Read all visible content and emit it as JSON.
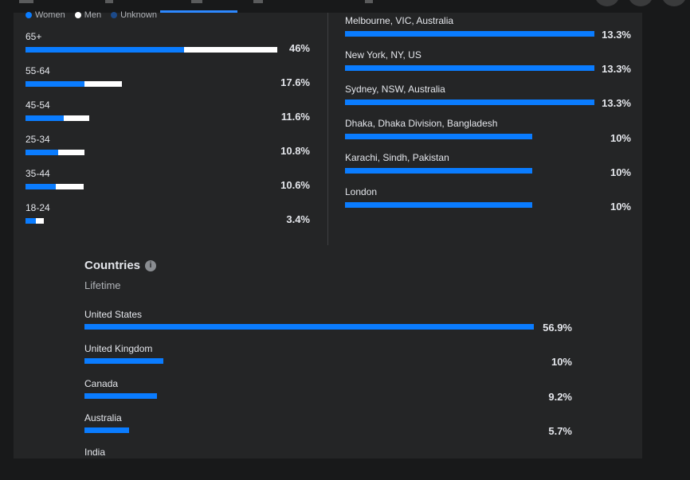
{
  "legend": [
    {
      "label": "Women",
      "color": "#0a7cff"
    },
    {
      "label": "Men",
      "color": "#ffffff"
    },
    {
      "label": "Unknown",
      "color": "#1c4a8a"
    }
  ],
  "age_groups": [
    {
      "label": "65+",
      "women_pct": 28.9,
      "men_pct": 17.1,
      "pct_label": "46%"
    },
    {
      "label": "55-64",
      "women_pct": 10.8,
      "men_pct": 6.8,
      "pct_label": "17.6%"
    },
    {
      "label": "45-54",
      "women_pct": 7.0,
      "men_pct": 4.6,
      "pct_label": "11.6%"
    },
    {
      "label": "25-34",
      "women_pct": 6.0,
      "men_pct": 4.8,
      "pct_label": "10.8%"
    },
    {
      "label": "35-44",
      "women_pct": 5.6,
      "men_pct": 5.0,
      "pct_label": "10.6%"
    },
    {
      "label": "18-24",
      "women_pct": 1.9,
      "men_pct": 1.5,
      "pct_label": "3.4%"
    }
  ],
  "age_scale_max": 46,
  "cities": [
    {
      "label": "Melbourne, VIC, Australia",
      "value": 13.3,
      "pct_label": "13.3%"
    },
    {
      "label": "New York, NY, US",
      "value": 13.3,
      "pct_label": "13.3%"
    },
    {
      "label": "Sydney, NSW, Australia",
      "value": 13.3,
      "pct_label": "13.3%"
    },
    {
      "label": "Dhaka, Dhaka Division, Bangladesh",
      "value": 10,
      "pct_label": "10%"
    },
    {
      "label": "Karachi, Sindh, Pakistan",
      "value": 10,
      "pct_label": "10%"
    },
    {
      "label": "London",
      "value": 10,
      "pct_label": "10%"
    }
  ],
  "city_scale_max": 13.3,
  "countries": {
    "title": "Countries",
    "subtitle": "Lifetime",
    "scale_max": 56.9,
    "items": [
      {
        "label": "United States",
        "value": 56.9,
        "pct_label": "56.9%"
      },
      {
        "label": "United Kingdom",
        "value": 10,
        "pct_label": "10%"
      },
      {
        "label": "Canada",
        "value": 9.2,
        "pct_label": "9.2%"
      },
      {
        "label": "Australia",
        "value": 5.7,
        "pct_label": "5.7%"
      },
      {
        "label": "India",
        "value": 0,
        "pct_label": ""
      }
    ]
  }
}
